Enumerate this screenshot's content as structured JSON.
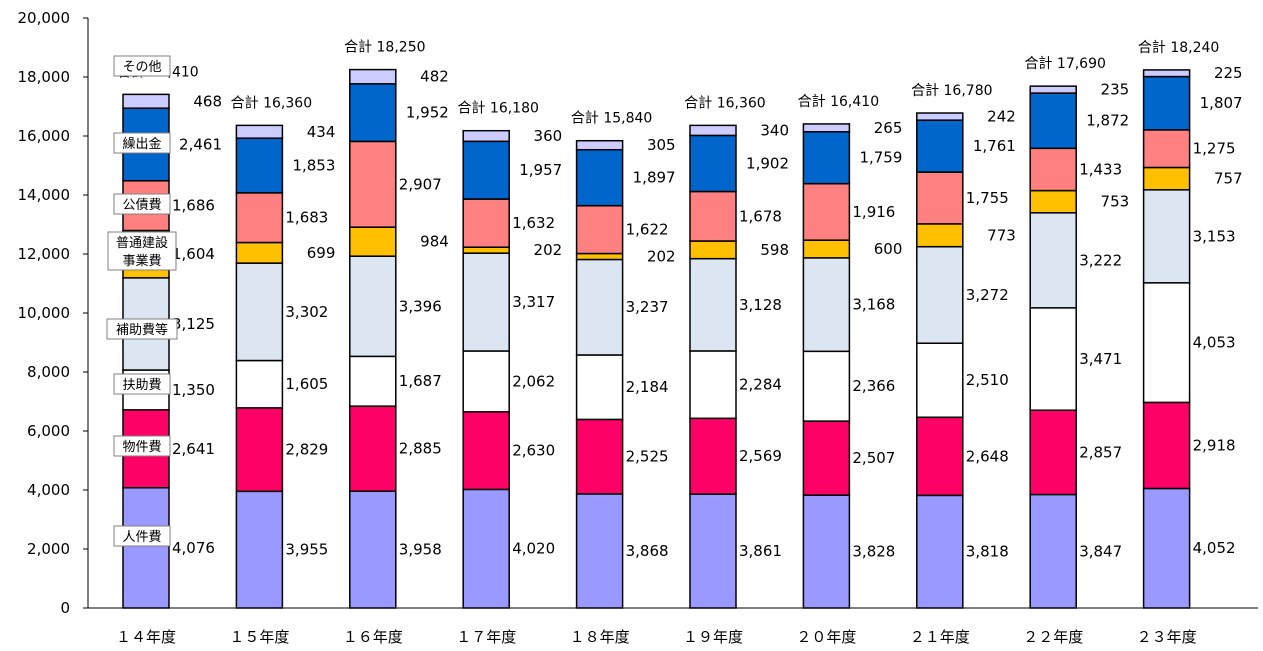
{
  "chart_data": {
    "type": "bar",
    "stacked": true,
    "ylim": [
      0,
      20000
    ],
    "yticks": [
      "0",
      "2,000",
      "4,000",
      "6,000",
      "8,000",
      "10,000",
      "12,000",
      "14,000",
      "16,000",
      "18,000",
      "20,000"
    ],
    "categories": [
      "１４年度",
      "１５年度",
      "１６年度",
      "１７年度",
      "１８年度",
      "１９年度",
      "２０年度",
      "２１年度",
      "２２年度",
      "２３年度"
    ],
    "total_prefix": "合計",
    "totals": [
      "17,410",
      "16,360",
      "18,250",
      "16,180",
      "15,840",
      "16,360",
      "16,410",
      "16,780",
      "17,690",
      "18,240"
    ],
    "series": [
      {
        "name": "人件費",
        "color": "#9999ff",
        "values": [
          4076,
          3955,
          3958,
          4020,
          3868,
          3861,
          3828,
          3818,
          3847,
          4052
        ],
        "labels": [
          "4,076",
          "3,955",
          "3,958",
          "4,020",
          "3,868",
          "3,861",
          "3,828",
          "3,818",
          "3,847",
          "4,052"
        ]
      },
      {
        "name": "物件費",
        "color": "#ff0066",
        "values": [
          2641,
          2829,
          2885,
          2630,
          2525,
          2569,
          2507,
          2648,
          2857,
          2918
        ],
        "labels": [
          "2,641",
          "2,829",
          "2,885",
          "2,630",
          "2,525",
          "2,569",
          "2,507",
          "2,648",
          "2,857",
          "2,918"
        ]
      },
      {
        "name": "扶助費",
        "color": "#ffffff",
        "values": [
          1350,
          1605,
          1687,
          2062,
          2184,
          2284,
          2366,
          2510,
          3471,
          4053
        ],
        "labels": [
          "1,350",
          "1,605",
          "1,687",
          "2,062",
          "2,184",
          "2,284",
          "2,366",
          "2,510",
          "3,471",
          "4,053"
        ]
      },
      {
        "name": "補助費等",
        "color": "#dce6f2",
        "values": [
          3125,
          3302,
          3396,
          3317,
          3237,
          3128,
          3168,
          3272,
          3222,
          3153
        ],
        "labels": [
          "3,125",
          "3,302",
          "3,396",
          "3,317",
          "3,237",
          "3,128",
          "3,168",
          "3,272",
          "3,222",
          "3,153"
        ]
      },
      {
        "name": "普通建設事業費",
        "color": "#ffc000",
        "values": [
          1604,
          699,
          984,
          202,
          202,
          598,
          600,
          773,
          753,
          757
        ],
        "labels": [
          "1,604",
          "699",
          "984",
          "202",
          "202",
          "598",
          "600",
          "773",
          "753",
          "757"
        ]
      },
      {
        "name": "公債費",
        "color": "#ff8080",
        "values": [
          1686,
          1683,
          2907,
          1632,
          1622,
          1678,
          1916,
          1755,
          1433,
          1275
        ],
        "labels": [
          "1,686",
          "1,683",
          "2,907",
          "1,632",
          "1,622",
          "1,678",
          "1,916",
          "1,755",
          "1,433",
          "1,275"
        ]
      },
      {
        "name": "繰出金",
        "color": "#0066cc",
        "values": [
          2461,
          1853,
          1952,
          1957,
          1897,
          1902,
          1759,
          1761,
          1872,
          1807
        ],
        "labels": [
          "2,461",
          "1,853",
          "1,952",
          "1,957",
          "1,897",
          "1,902",
          "1,759",
          "1,761",
          "1,872",
          "1,807"
        ]
      },
      {
        "name": "その他",
        "color": "#ccccff",
        "values": [
          468,
          434,
          482,
          360,
          305,
          340,
          265,
          242,
          235,
          225
        ],
        "labels": [
          "468",
          "434",
          "482",
          "360",
          "305",
          "340",
          "265",
          "242",
          "235",
          "225"
        ]
      }
    ],
    "legend_placement": "inside first bar"
  }
}
